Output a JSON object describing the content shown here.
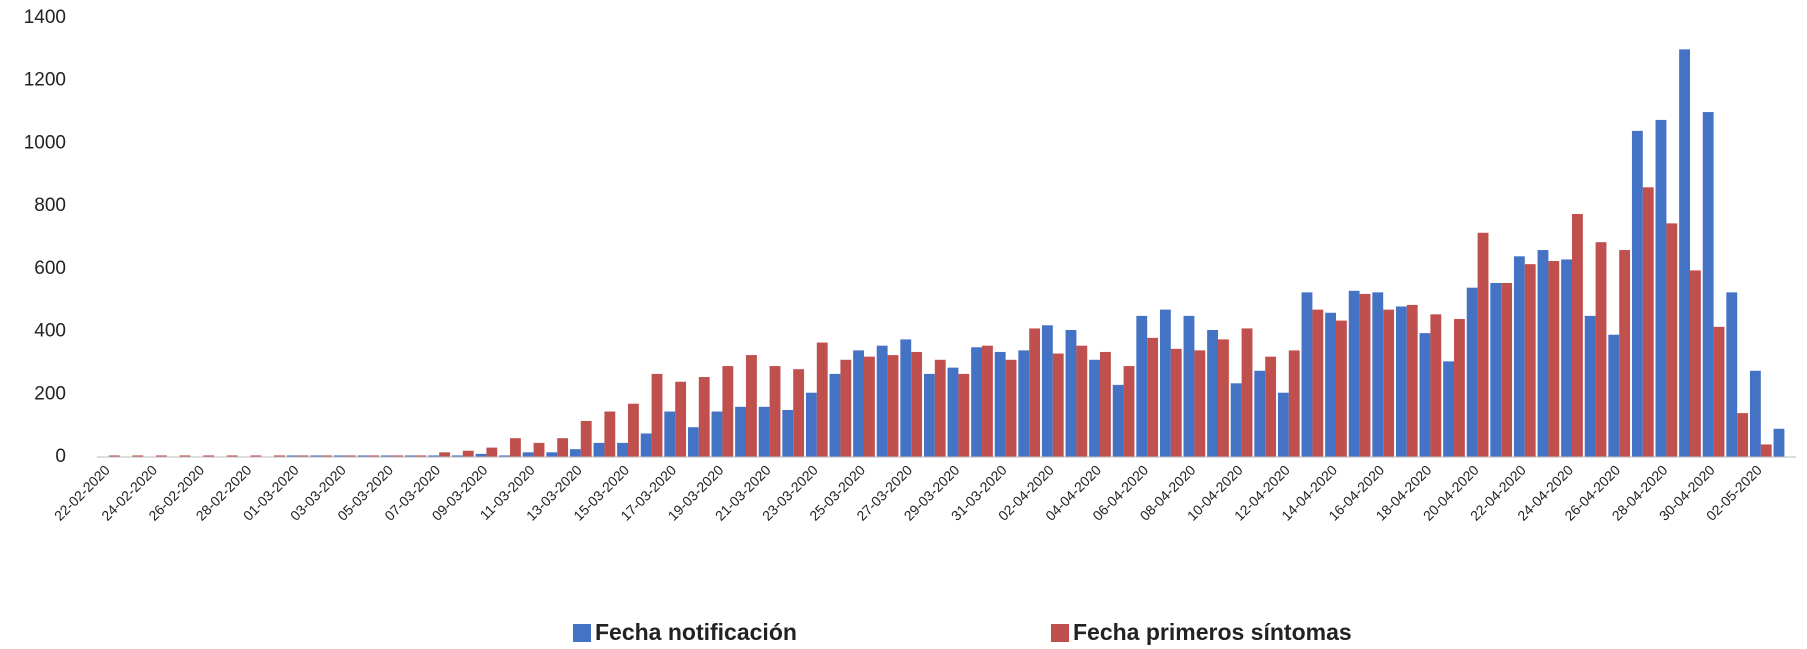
{
  "chart_data": {
    "type": "bar",
    "categories": [
      "22-02-2020",
      null,
      "24-02-2020",
      null,
      "26-02-2020",
      null,
      "28-02-2020",
      null,
      "01-03-2020",
      null,
      "03-03-2020",
      null,
      "05-03-2020",
      null,
      "07-03-2020",
      null,
      "09-03-2020",
      null,
      "11-03-2020",
      null,
      "13-03-2020",
      null,
      "15-03-2020",
      null,
      "17-03-2020",
      null,
      "19-03-2020",
      null,
      "21-03-2020",
      null,
      "23-03-2020",
      null,
      "25-03-2020",
      null,
      "27-03-2020",
      null,
      "29-03-2020",
      null,
      "31-03-2020",
      null,
      "02-04-2020",
      null,
      "04-04-2020",
      null,
      "06-04-2020",
      null,
      "08-04-2020",
      null,
      "10-04-2020",
      null,
      "12-04-2020",
      null,
      "14-04-2020",
      null,
      "16-04-2020",
      null,
      "18-04-2020",
      null,
      "20-04-2020",
      null,
      "22-04-2020",
      null,
      "24-04-2020",
      null,
      "26-04-2020",
      null,
      "28-04-2020",
      null,
      "30-04-2020",
      null,
      "02-05-2020",
      null
    ],
    "series": [
      {
        "name": "Fecha notificación",
        "color": "#4472c4",
        "values": [
          0,
          0,
          0,
          0,
          0,
          0,
          0,
          0,
          5,
          5,
          5,
          5,
          5,
          5,
          5,
          5,
          10,
          5,
          15,
          15,
          25,
          45,
          45,
          75,
          145,
          95,
          145,
          160,
          160,
          150,
          205,
          265,
          340,
          355,
          375,
          265,
          285,
          350,
          335,
          340,
          420,
          405,
          310,
          230,
          450,
          470,
          450,
          405,
          235,
          275,
          205,
          525,
          460,
          530,
          525,
          480,
          395,
          305,
          540,
          555,
          640,
          660,
          630,
          450,
          390,
          1040,
          1075,
          1300,
          1100,
          525,
          275,
          90
        ]
      },
      {
        "name": "Fecha primeros síntomas",
        "color": "#c0504d",
        "values": [
          5,
          5,
          5,
          5,
          5,
          5,
          5,
          5,
          5,
          5,
          5,
          5,
          5,
          5,
          15,
          20,
          30,
          60,
          45,
          60,
          115,
          145,
          170,
          265,
          240,
          255,
          290,
          325,
          290,
          280,
          365,
          310,
          320,
          325,
          335,
          310,
          265,
          355,
          310,
          410,
          330,
          355,
          335,
          290,
          380,
          345,
          340,
          375,
          410,
          320,
          340,
          470,
          435,
          520,
          470,
          485,
          455,
          440,
          715,
          555,
          615,
          625,
          775,
          685,
          660,
          860,
          745,
          595,
          415,
          140,
          40,
          0
        ]
      }
    ],
    "ylim": [
      0,
      1400
    ],
    "yticks": [
      0,
      200,
      400,
      600,
      800,
      1000,
      1200,
      1400
    ],
    "grid": false
  }
}
